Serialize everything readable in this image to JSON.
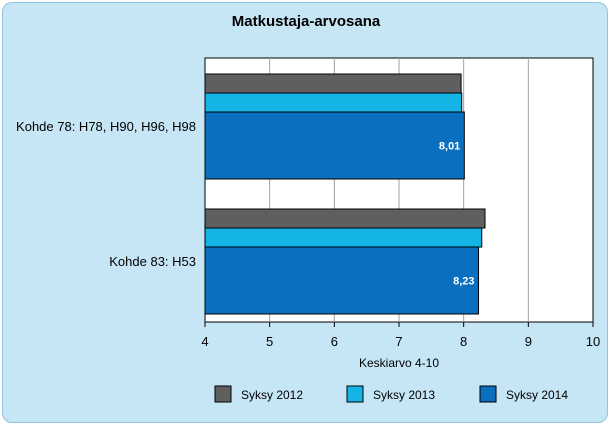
{
  "chart_data": {
    "type": "bar",
    "orientation": "horizontal",
    "title": "Matkustaja-arvosana",
    "xlabel": "Keskiarvo 4-10",
    "ylabel": "",
    "xlim": [
      4,
      10
    ],
    "xticks": [
      "4",
      "5",
      "6",
      "7",
      "8",
      "9",
      "10"
    ],
    "grid": true,
    "legend_position": "bottom",
    "categories": [
      "Kohde 78: H78, H90, H96, H98",
      "Kohde 83: H53"
    ],
    "series": [
      {
        "name": "Syksy 2012",
        "color": "#5f5f5f",
        "values": [
          7.96,
          8.33
        ]
      },
      {
        "name": "Syksy 2013",
        "color": "#14b4e6",
        "values": [
          7.97,
          8.28
        ]
      },
      {
        "name": "Syksy 2014",
        "color": "#0a6fbf",
        "values": [
          8.01,
          8.23
        ]
      }
    ],
    "data_labels": [
      "8,01",
      "8,23"
    ]
  }
}
